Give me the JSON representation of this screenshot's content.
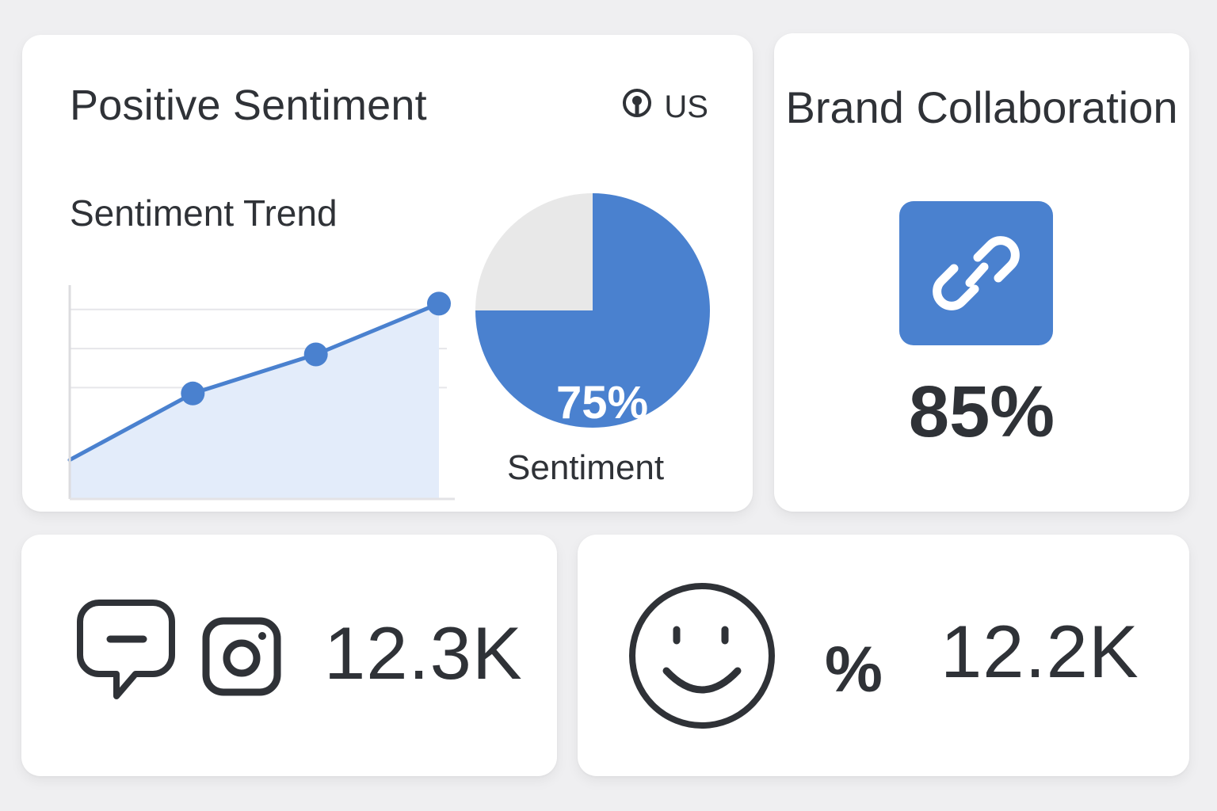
{
  "sentiment_card": {
    "title": "Positive Sentiment",
    "region": "US",
    "region_icon": "location-pin-icon",
    "trend_title": "Sentiment Trend",
    "pie_label": "Sentiment"
  },
  "brand_card": {
    "title": "Brand Collaboration",
    "icon": "link-icon",
    "value": "85%"
  },
  "comments_card": {
    "icons": [
      "chat-bubble-icon",
      "instagram-icon"
    ],
    "value": "12.3K"
  },
  "happy_card": {
    "icons": [
      "smiley-icon"
    ],
    "percent_symbol": "%",
    "value": "12.2K"
  },
  "colors": {
    "accent": "#4a81cf",
    "area_fill": "#e3ecfa",
    "pie_remainder": "#e8e8e8",
    "text": "#2f3237",
    "background": "#efeff1"
  },
  "chart_data": [
    {
      "type": "line",
      "title": "Sentiment Trend",
      "x": [
        0,
        1,
        2,
        3
      ],
      "series": [
        {
          "values": [
            1.0,
            2.7,
            3.7,
            5.0
          ]
        }
      ],
      "markers_on": [
        1,
        2,
        3
      ],
      "fill_under": true,
      "ylim": [
        0,
        6
      ],
      "grid": true,
      "xlabel": "",
      "ylabel": ""
    },
    {
      "type": "pie",
      "slices": [
        {
          "label": "75%",
          "value": 75
        },
        {
          "label": "",
          "value": 25
        }
      ],
      "label": "Sentiment"
    }
  ]
}
